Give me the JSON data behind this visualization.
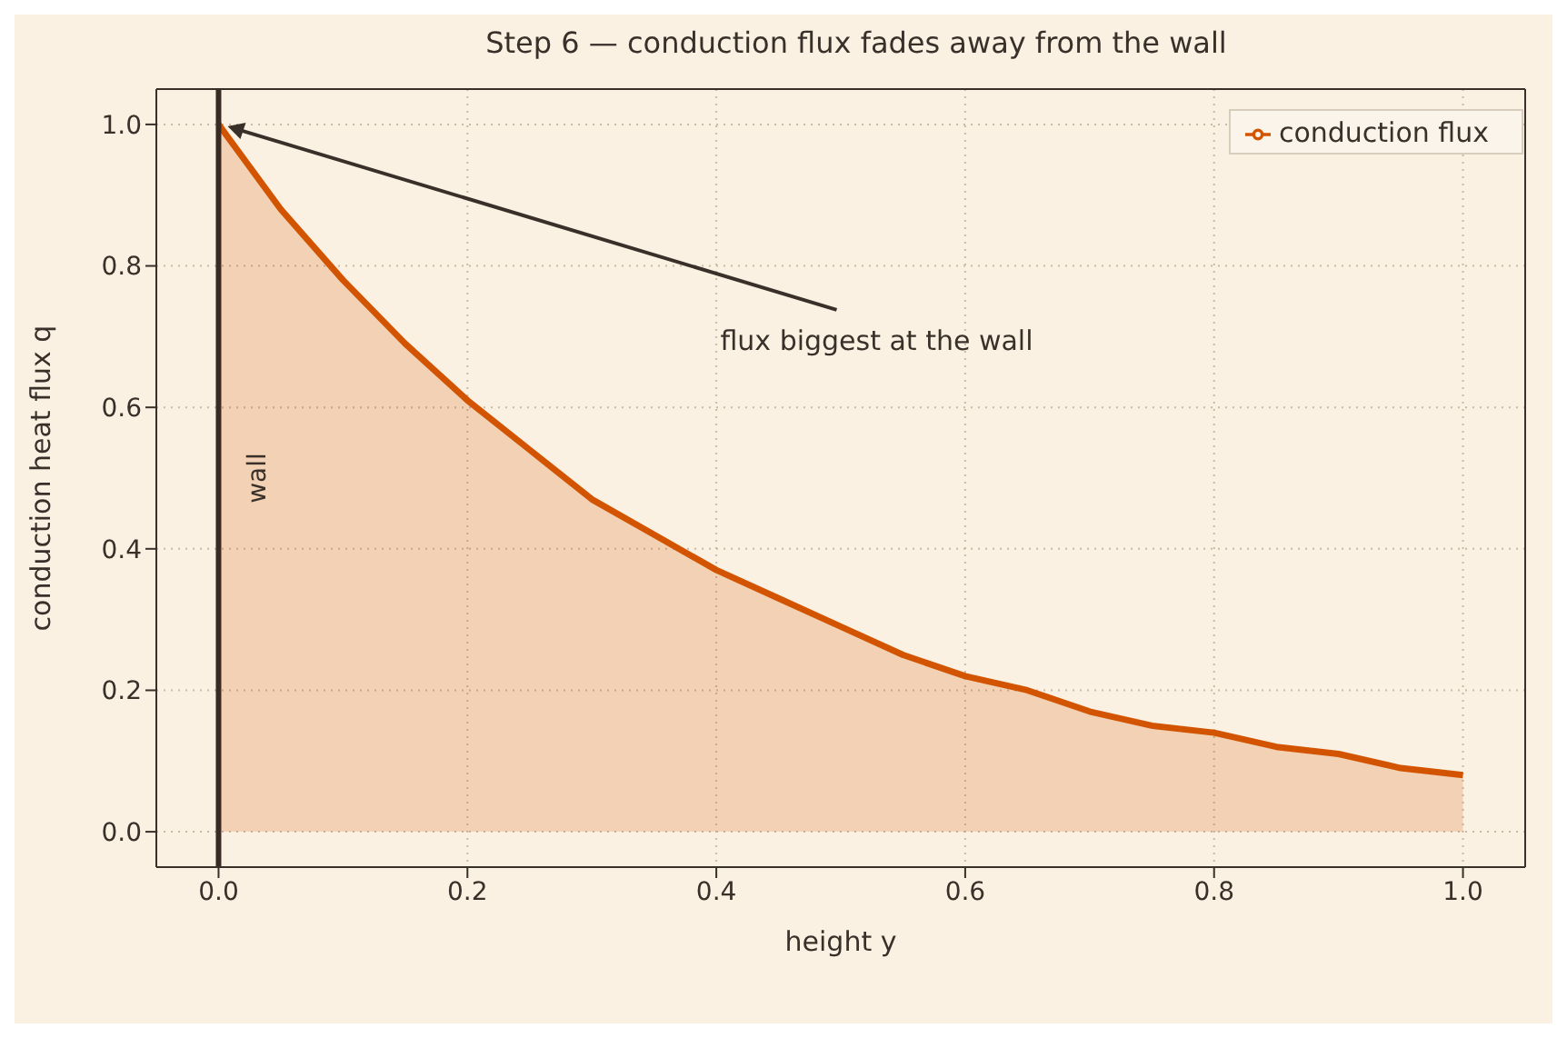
{
  "chart_data": {
    "type": "area",
    "title": "Step 6 — conduction flux fades away from the wall",
    "xlabel": "height  y",
    "ylabel": "conduction heat flux  q",
    "x": [
      0,
      0.05,
      0.1,
      0.15,
      0.2,
      0.25,
      0.3,
      0.35,
      0.4,
      0.45,
      0.5,
      0.55,
      0.6,
      0.65,
      0.7,
      0.75,
      0.8,
      0.85,
      0.9,
      0.95,
      1.0
    ],
    "series": [
      {
        "name": "conduction flux",
        "color": "#d35400",
        "values": [
          1.0,
          0.88,
          0.78,
          0.69,
          0.61,
          0.54,
          0.47,
          0.42,
          0.37,
          0.33,
          0.29,
          0.25,
          0.22,
          0.2,
          0.17,
          0.15,
          0.14,
          0.12,
          0.11,
          0.09,
          0.08
        ]
      }
    ],
    "xlim": [
      -0.05,
      1.05
    ],
    "ylim": [
      -0.05,
      1.05
    ],
    "xticks": [
      {
        "value": 0,
        "label": "0.0"
      },
      0.2,
      0.4,
      0.6,
      0.8,
      {
        "value": 1,
        "label": "1.0"
      }
    ],
    "yticks": [
      {
        "value": 0,
        "label": "0.0"
      },
      0.2,
      0.4,
      0.6,
      0.8,
      {
        "value": 1,
        "label": "1.0"
      }
    ],
    "ref_lines": [
      {
        "axis": "x",
        "value": 0,
        "label": "wall",
        "color": "#3a2a24"
      }
    ],
    "annotations": [
      {
        "text": "flux biggest at the wall",
        "x": 0,
        "y": 1
      }
    ],
    "grid": true,
    "legend": "top right",
    "marker": "none"
  }
}
